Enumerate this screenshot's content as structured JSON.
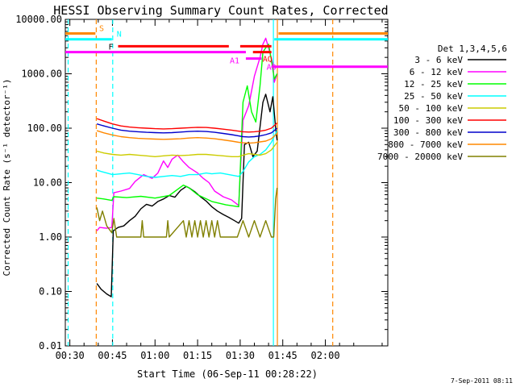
{
  "chart_data": {
    "type": "line",
    "title": "HESSI Observing Summary Count Rates, Corrected",
    "xlabel": "Start Time (06-Sep-11 00:28:22)",
    "ylabel": "Corrected Count Rate (s⁻¹ detector⁻¹)",
    "yscale": "log",
    "ylim": [
      0.01,
      10000
    ],
    "xlim_min": [
      28.4,
      142
    ],
    "x_unit": "minutes after 00:00 UT",
    "xticks": [
      {
        "m": 30,
        "label": "00:30"
      },
      {
        "m": 45,
        "label": "00:45"
      },
      {
        "m": 60,
        "label": "01:00"
      },
      {
        "m": 75,
        "label": "01:15"
      },
      {
        "m": 90,
        "label": "01:30"
      },
      {
        "m": 105,
        "label": "01:45"
      },
      {
        "m": 120,
        "label": "02:00"
      }
    ],
    "yticks": [
      {
        "v": 0.01,
        "label": "0.01"
      },
      {
        "v": 0.1,
        "label": "0.10"
      },
      {
        "v": 1,
        "label": "1.00"
      },
      {
        "v": 10,
        "label": "10.00"
      },
      {
        "v": 100,
        "label": "100.00"
      },
      {
        "v": 1000,
        "label": "1000.00"
      },
      {
        "v": 10000,
        "label": "10000.00"
      }
    ],
    "legend_title": "Det 1,3,4,5,6",
    "legend_position": "right",
    "series": [
      {
        "name": "3 - 6 keV",
        "color": "#000000",
        "points": [
          [
            39.5,
            0.14
          ],
          [
            41,
            0.11
          ],
          [
            43,
            0.09
          ],
          [
            44.6,
            0.08
          ],
          [
            45.3,
            1.3
          ],
          [
            47,
            1.5
          ],
          [
            49,
            1.6
          ],
          [
            51,
            2.0
          ],
          [
            53,
            2.4
          ],
          [
            55,
            3.3
          ],
          [
            57,
            4.0
          ],
          [
            59,
            3.7
          ],
          [
            61,
            4.5
          ],
          [
            63,
            5.0
          ],
          [
            65,
            5.8
          ],
          [
            67,
            5.4
          ],
          [
            69,
            7.2
          ],
          [
            71,
            8.5
          ],
          [
            72,
            8.0
          ],
          [
            74,
            6.8
          ],
          [
            76,
            5.5
          ],
          [
            78,
            4.6
          ],
          [
            80,
            3.6
          ],
          [
            82,
            3.0
          ],
          [
            84,
            2.6
          ],
          [
            86,
            2.3
          ],
          [
            88,
            2.0
          ],
          [
            89.5,
            1.8
          ],
          [
            90.5,
            2.2
          ],
          [
            91.5,
            50
          ],
          [
            93,
            55
          ],
          [
            94.5,
            30
          ],
          [
            96,
            38
          ],
          [
            98,
            300
          ],
          [
            99,
            420
          ],
          [
            100.5,
            200
          ],
          [
            101.5,
            380
          ],
          [
            102.5,
            100
          ],
          [
            103,
            60
          ]
        ]
      },
      {
        "name": "6 - 12 keV",
        "color": "#ff00ff",
        "points": [
          [
            39.5,
            1.3
          ],
          [
            40.5,
            1.5
          ],
          [
            43,
            1.45
          ],
          [
            44.8,
            1.5
          ],
          [
            45.5,
            6.5
          ],
          [
            48,
            7.0
          ],
          [
            51,
            7.8
          ],
          [
            53,
            10.5
          ],
          [
            56,
            14
          ],
          [
            59,
            12
          ],
          [
            61,
            15
          ],
          [
            63,
            25
          ],
          [
            64.5,
            19
          ],
          [
            66,
            27
          ],
          [
            68,
            32
          ],
          [
            70,
            24
          ],
          [
            72,
            19
          ],
          [
            75,
            15
          ],
          [
            77,
            12
          ],
          [
            79,
            10
          ],
          [
            81,
            7
          ],
          [
            84,
            5.5
          ],
          [
            87,
            4.8
          ],
          [
            89.5,
            3.8
          ],
          [
            91,
            140
          ],
          [
            93,
            260
          ],
          [
            95,
            900
          ],
          [
            97,
            2000
          ],
          [
            98,
            3500
          ],
          [
            99,
            4500
          ],
          [
            100,
            3000
          ],
          [
            101.5,
            1500
          ],
          [
            102,
            700
          ],
          [
            103,
            1000
          ]
        ]
      },
      {
        "name": "12 - 25 keV",
        "color": "#00ff00",
        "points": [
          [
            39.5,
            5.2
          ],
          [
            42,
            5.0
          ],
          [
            44.8,
            4.7
          ],
          [
            45.5,
            5.5
          ],
          [
            50,
            5.3
          ],
          [
            55,
            5.6
          ],
          [
            60,
            5.2
          ],
          [
            65,
            5.8
          ],
          [
            70,
            9.0
          ],
          [
            72,
            8.0
          ],
          [
            75,
            6.0
          ],
          [
            80,
            4.5
          ],
          [
            85,
            3.9
          ],
          [
            89.5,
            3.6
          ],
          [
            91,
            300
          ],
          [
            92.5,
            600
          ],
          [
            94,
            200
          ],
          [
            95.5,
            130
          ],
          [
            97,
            600
          ],
          [
            98,
            2500
          ],
          [
            99,
            3000
          ],
          [
            100,
            3500
          ],
          [
            101,
            1800
          ],
          [
            102,
            800
          ],
          [
            103,
            1000
          ]
        ]
      },
      {
        "name": "25 - 50 keV",
        "color": "#00ffff",
        "points": [
          [
            39.5,
            17
          ],
          [
            41,
            16
          ],
          [
            43,
            15
          ],
          [
            45,
            14
          ],
          [
            48,
            14.5
          ],
          [
            51,
            15
          ],
          [
            54,
            14
          ],
          [
            57,
            13
          ],
          [
            60,
            12.5
          ],
          [
            63,
            13
          ],
          [
            66,
            13.5
          ],
          [
            69,
            13
          ],
          [
            72,
            14
          ],
          [
            75,
            14
          ],
          [
            78,
            15
          ],
          [
            80,
            14.5
          ],
          [
            83,
            15
          ],
          [
            86,
            14
          ],
          [
            89.5,
            13
          ],
          [
            91,
            16
          ],
          [
            93,
            24
          ],
          [
            95,
            30
          ],
          [
            97,
            33
          ],
          [
            99,
            40
          ],
          [
            101,
            55
          ],
          [
            103,
            90
          ]
        ]
      },
      {
        "name": "50 - 100 keV",
        "color": "#cccc00",
        "points": [
          [
            39.5,
            38
          ],
          [
            42,
            35
          ],
          [
            45,
            33
          ],
          [
            48,
            32
          ],
          [
            51,
            33
          ],
          [
            54,
            32
          ],
          [
            57,
            31
          ],
          [
            60,
            30
          ],
          [
            63,
            31
          ],
          [
            66,
            32
          ],
          [
            69,
            31.5
          ],
          [
            72,
            32
          ],
          [
            75,
            33
          ],
          [
            78,
            33
          ],
          [
            81,
            32
          ],
          [
            84,
            31
          ],
          [
            87,
            30
          ],
          [
            89.5,
            30
          ],
          [
            91,
            32
          ],
          [
            93,
            34
          ],
          [
            95,
            33
          ],
          [
            97,
            32
          ],
          [
            99,
            34
          ],
          [
            101,
            40
          ],
          [
            103,
            55
          ]
        ]
      },
      {
        "name": "100 - 300 keV",
        "color": "#ff0000",
        "points": [
          [
            39.5,
            150
          ],
          [
            42,
            135
          ],
          [
            45,
            120
          ],
          [
            48,
            110
          ],
          [
            51,
            105
          ],
          [
            54,
            102
          ],
          [
            57,
            100
          ],
          [
            60,
            98
          ],
          [
            63,
            97
          ],
          [
            66,
            98
          ],
          [
            69,
            100
          ],
          [
            72,
            102
          ],
          [
            75,
            104
          ],
          [
            78,
            103
          ],
          [
            81,
            100
          ],
          [
            84,
            96
          ],
          [
            87,
            92
          ],
          [
            89.5,
            88
          ],
          [
            91,
            86
          ],
          [
            93,
            85
          ],
          [
            95,
            86
          ],
          [
            97,
            88
          ],
          [
            99,
            92
          ],
          [
            101,
            100
          ],
          [
            103,
            125
          ]
        ]
      },
      {
        "name": "300 - 800 keV",
        "color": "#0000cc",
        "points": [
          [
            39.5,
            120
          ],
          [
            42,
            110
          ],
          [
            45,
            100
          ],
          [
            48,
            92
          ],
          [
            51,
            88
          ],
          [
            54,
            86
          ],
          [
            57,
            84
          ],
          [
            60,
            83
          ],
          [
            63,
            82
          ],
          [
            66,
            83
          ],
          [
            69,
            85
          ],
          [
            72,
            87
          ],
          [
            75,
            88
          ],
          [
            78,
            87
          ],
          [
            81,
            84
          ],
          [
            84,
            80
          ],
          [
            87,
            76
          ],
          [
            89.5,
            72
          ],
          [
            91,
            70
          ],
          [
            93,
            69
          ],
          [
            95,
            70
          ],
          [
            97,
            72
          ],
          [
            99,
            76
          ],
          [
            101,
            82
          ],
          [
            103,
            100
          ]
        ]
      },
      {
        "name": "800 - 7000 keV",
        "color": "#ff8800",
        "points": [
          [
            39.5,
            90
          ],
          [
            42,
            82
          ],
          [
            45,
            75
          ],
          [
            48,
            70
          ],
          [
            51,
            67
          ],
          [
            54,
            65
          ],
          [
            57,
            64
          ],
          [
            60,
            63
          ],
          [
            63,
            62.5
          ],
          [
            66,
            63
          ],
          [
            69,
            64
          ],
          [
            72,
            66
          ],
          [
            75,
            67
          ],
          [
            78,
            66
          ],
          [
            81,
            64
          ],
          [
            84,
            61
          ],
          [
            87,
            58
          ],
          [
            89.5,
            55
          ],
          [
            91,
            54
          ],
          [
            93,
            53
          ],
          [
            95,
            54
          ],
          [
            97,
            56
          ],
          [
            99,
            58
          ],
          [
            101,
            64
          ],
          [
            103,
            80
          ]
        ]
      },
      {
        "name": "7000 - 20000 keV",
        "color": "#808000",
        "points": [
          [
            39.5,
            3.5
          ],
          [
            40.5,
            2.0
          ],
          [
            41.5,
            3.0
          ],
          [
            43,
            1.6
          ],
          [
            44.8,
            1.2
          ],
          [
            45.5,
            2.2
          ],
          [
            46.5,
            1.0
          ],
          [
            55,
            1.0
          ],
          [
            55.5,
            2.0
          ],
          [
            56,
            1.0
          ],
          [
            64,
            1.0
          ],
          [
            64.5,
            2.0
          ],
          [
            65,
            1.0
          ],
          [
            70,
            2.0
          ],
          [
            71,
            1.0
          ],
          [
            72,
            2.0
          ],
          [
            73,
            1.0
          ],
          [
            74,
            2.0
          ],
          [
            75,
            1.0
          ],
          [
            76,
            2.0
          ],
          [
            77,
            1.0
          ],
          [
            78,
            2.0
          ],
          [
            79,
            1.0
          ],
          [
            80,
            2.0
          ],
          [
            81,
            1.0
          ],
          [
            82,
            2.0
          ],
          [
            83,
            1.0
          ],
          [
            89,
            1.0
          ],
          [
            91,
            2.0
          ],
          [
            93,
            1.0
          ],
          [
            95,
            2.0
          ],
          [
            97,
            1.0
          ],
          [
            99,
            2.0
          ],
          [
            101,
            1.0
          ],
          [
            101.8,
            1.0
          ],
          [
            102.5,
            5.0
          ],
          [
            103,
            8.0
          ]
        ]
      }
    ],
    "flag_bars": [
      {
        "label": "S",
        "color": "#ff8800",
        "segments": [
          [
            28.4,
            39
          ],
          [
            103.5,
            142
          ]
        ],
        "value": 5500
      },
      {
        "label": "N",
        "color": "#00ffff",
        "segments": [
          [
            28.4,
            44.8
          ],
          [
            102,
            142
          ]
        ],
        "value": 4300
      },
      {
        "label": "F",
        "color": "#ff0000",
        "segments": [
          [
            47,
            86
          ],
          [
            90,
            101
          ]
        ],
        "value": 3200
      },
      {
        "label": "",
        "color": "#ff00ff",
        "segments": [
          [
            28.4,
            92
          ]
        ],
        "value": 2500
      },
      {
        "label": "AQ",
        "color": "#ff0000",
        "segments": [
          [
            94.5,
            101
          ]
        ],
        "value": 2500
      },
      {
        "label": "A1",
        "color": "#ff00ff",
        "segments": [
          [
            92,
            97.5
          ]
        ],
        "value": 1900
      },
      {
        "label": "A3",
        "color": "#ff00ff",
        "segments": [
          [
            101,
            142
          ]
        ],
        "value": 1350
      }
    ],
    "vlines": [
      {
        "m": 39.3,
        "color": "#ff8800",
        "dash": true
      },
      {
        "m": 45.1,
        "color": "#00ffff",
        "dash": true
      },
      {
        "m": 101.7,
        "color": "#00ffff",
        "dash": false
      },
      {
        "m": 103.1,
        "color": "#ff8800",
        "dash": false
      },
      {
        "m": 29.4,
        "color": "#00ffff",
        "dash": true
      },
      {
        "m": 122.6,
        "color": "#ff8800",
        "dash": true
      }
    ],
    "corner_stamp": "7-Sep-2011 08:11"
  }
}
